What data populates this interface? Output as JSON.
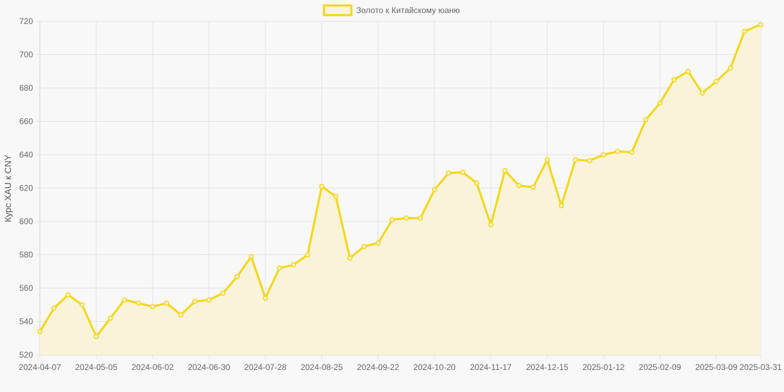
{
  "chart_data": {
    "type": "area",
    "title": "",
    "xlabel": "",
    "ylabel": "Курс XAU к CNY",
    "ylim": [
      520,
      720
    ],
    "y_ticks": [
      520,
      540,
      560,
      580,
      600,
      620,
      640,
      660,
      680,
      700,
      720
    ],
    "grid": true,
    "legend_position": "top-center",
    "x_tick_labels": [
      "2024-04-07",
      "2024-05-05",
      "2024-06-02",
      "2024-06-30",
      "2024-07-28",
      "2024-08-25",
      "2024-09-22",
      "2024-10-20",
      "2024-11-17",
      "2024-12-15",
      "2025-01-12",
      "2025-02-09",
      "2025-03-09",
      "2025-03-31"
    ],
    "x": [
      "2024-04-07",
      "2024-04-14",
      "2024-04-21",
      "2024-04-28",
      "2024-05-05",
      "2024-05-12",
      "2024-05-19",
      "2024-05-26",
      "2024-06-02",
      "2024-06-09",
      "2024-06-16",
      "2024-06-23",
      "2024-06-30",
      "2024-07-07",
      "2024-07-14",
      "2024-07-21",
      "2024-07-28",
      "2024-08-04",
      "2024-08-11",
      "2024-08-18",
      "2024-08-25",
      "2024-09-01",
      "2024-09-08",
      "2024-09-15",
      "2024-09-22",
      "2024-09-29",
      "2024-10-06",
      "2024-10-13",
      "2024-10-20",
      "2024-10-27",
      "2024-11-03",
      "2024-11-10",
      "2024-11-17",
      "2024-11-24",
      "2024-12-01",
      "2024-12-08",
      "2024-12-15",
      "2024-12-22",
      "2024-12-29",
      "2025-01-05",
      "2025-01-12",
      "2025-01-19",
      "2025-01-26",
      "2025-02-02",
      "2025-02-09",
      "2025-02-16",
      "2025-02-23",
      "2025-03-02",
      "2025-03-09",
      "2025-03-16",
      "2025-03-23",
      "2025-03-31"
    ],
    "series": [
      {
        "name": "Золото к Китайскому юаню",
        "color": "#f5d614",
        "fill": "#f9f3d9",
        "values": [
          534,
          548,
          556,
          550,
          531,
          542,
          553,
          551,
          549,
          551,
          544,
          552,
          553,
          557,
          567,
          579,
          554,
          572,
          574,
          580,
          621,
          615,
          578,
          585,
          587,
          601,
          602,
          602,
          619,
          629,
          629.5,
          623,
          598,
          630.5,
          621.5,
          620.5,
          637,
          609.5,
          637,
          636.5,
          640,
          642,
          641.5,
          661,
          671,
          685,
          690,
          677,
          684,
          692,
          714,
          718
        ]
      }
    ]
  }
}
